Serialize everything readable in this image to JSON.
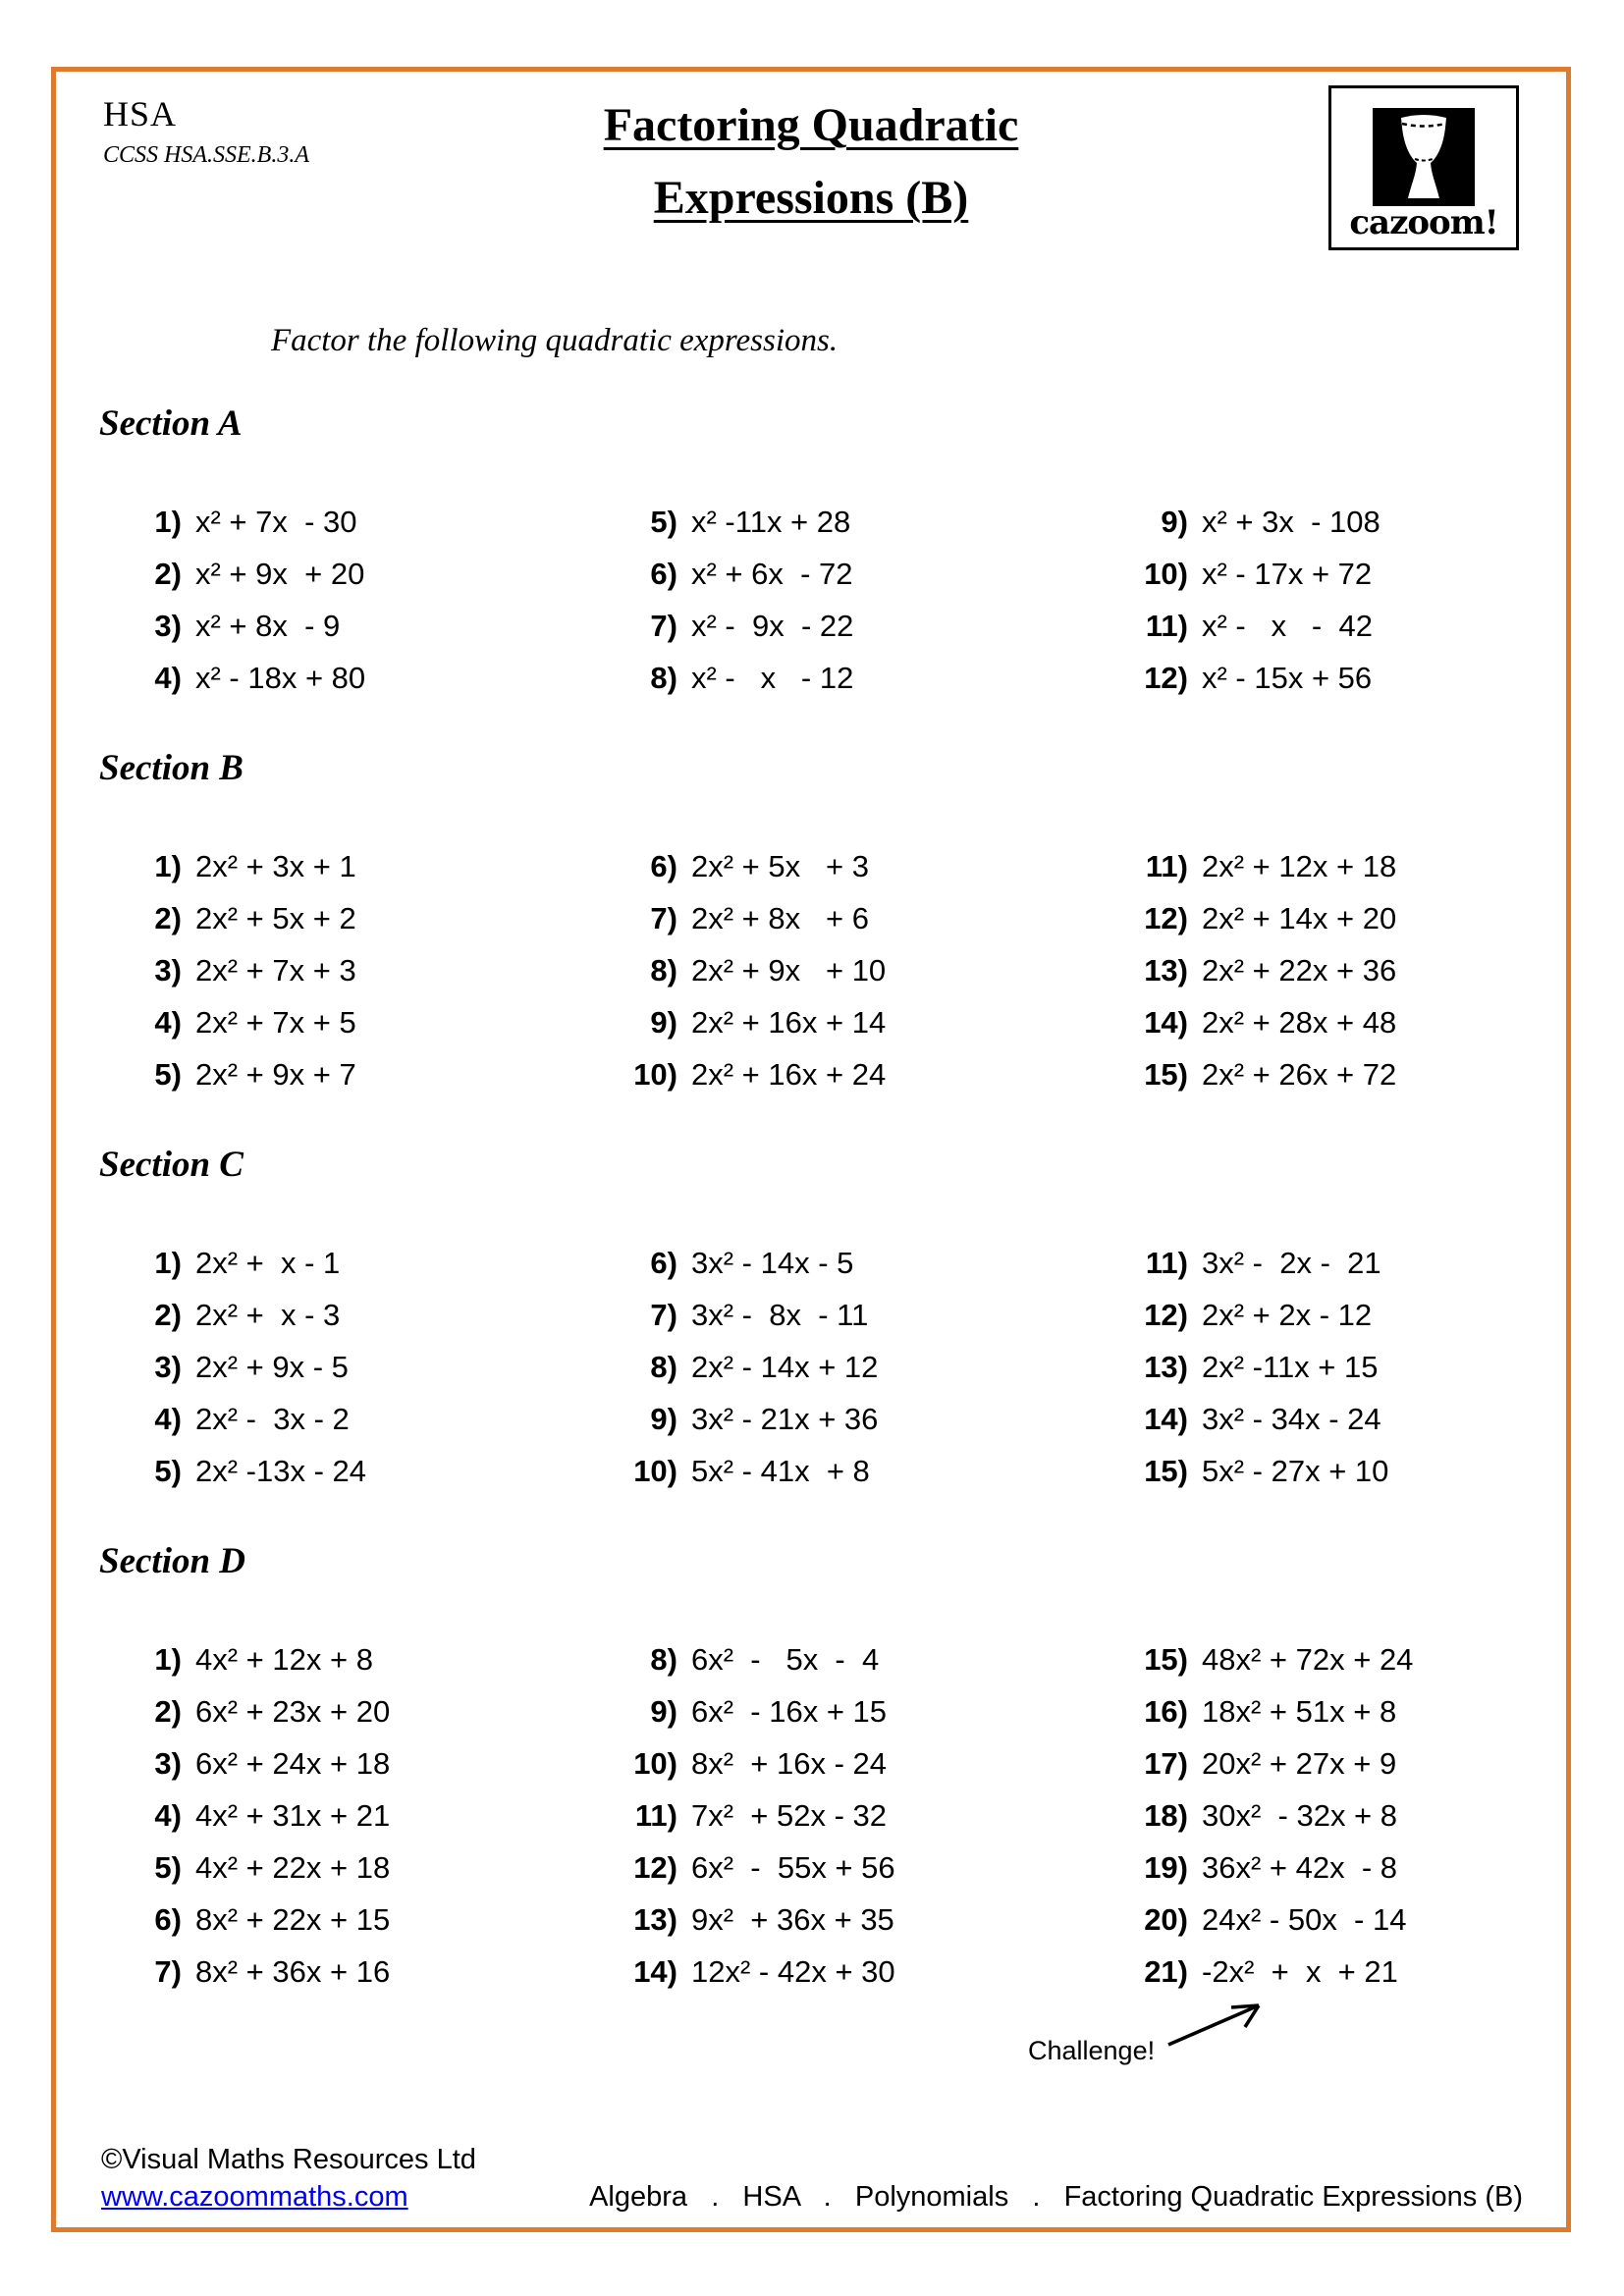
{
  "page": {
    "course": "HSA",
    "standard": "CCSS HSA.SSE.B.3.A",
    "title_line1": "Factoring Quadratic",
    "title_line2": "Expressions (B)",
    "logo_wordmark": "cazoom!",
    "instruction": "Factor the following quadratic expressions.",
    "border_color": "#dd7b2e",
    "link_color": "#0000ee"
  },
  "sections": [
    {
      "label": "Section A",
      "columns": [
        [
          {
            "n": "1)",
            "e": "x² + 7x  - 30"
          },
          {
            "n": "2)",
            "e": "x² + 9x  + 20"
          },
          {
            "n": "3)",
            "e": "x² + 8x  - 9"
          },
          {
            "n": "4)",
            "e": "x² - 18x + 80"
          }
        ],
        [
          {
            "n": "5)",
            "e": "x² -11x + 28"
          },
          {
            "n": "6)",
            "e": "x² + 6x  - 72"
          },
          {
            "n": "7)",
            "e": "x² -  9x  - 22"
          },
          {
            "n": "8)",
            "e": "x² -   x   - 12"
          }
        ],
        [
          {
            "n": "9)",
            "e": "x² + 3x  - 108"
          },
          {
            "n": "10)",
            "e": "x² - 17x + 72"
          },
          {
            "n": "11)",
            "e": "x² -   x   -  42"
          },
          {
            "n": "12)",
            "e": "x² - 15x + 56"
          }
        ]
      ]
    },
    {
      "label": "Section B",
      "columns": [
        [
          {
            "n": "1)",
            "e": "2x² + 3x + 1"
          },
          {
            "n": "2)",
            "e": "2x² + 5x + 2"
          },
          {
            "n": "3)",
            "e": "2x² + 7x + 3"
          },
          {
            "n": "4)",
            "e": "2x² + 7x + 5"
          },
          {
            "n": "5)",
            "e": "2x² + 9x + 7"
          }
        ],
        [
          {
            "n": "6)",
            "e": "2x² + 5x   + 3"
          },
          {
            "n": "7)",
            "e": "2x² + 8x   + 6"
          },
          {
            "n": "8)",
            "e": "2x² + 9x   + 10"
          },
          {
            "n": "9)",
            "e": "2x² + 16x + 14"
          },
          {
            "n": "10)",
            "e": "2x² + 16x + 24"
          }
        ],
        [
          {
            "n": "11)",
            "e": "2x² + 12x + 18"
          },
          {
            "n": "12)",
            "e": "2x² + 14x + 20"
          },
          {
            "n": "13)",
            "e": "2x² + 22x + 36"
          },
          {
            "n": "14)",
            "e": "2x² + 28x + 48"
          },
          {
            "n": "15)",
            "e": "2x² + 26x + 72"
          }
        ]
      ]
    },
    {
      "label": "Section C",
      "columns": [
        [
          {
            "n": "1)",
            "e": "2x² +  x - 1"
          },
          {
            "n": "2)",
            "e": "2x² +  x - 3"
          },
          {
            "n": "3)",
            "e": "2x² + 9x - 5"
          },
          {
            "n": "4)",
            "e": "2x² -  3x - 2"
          },
          {
            "n": "5)",
            "e": "2x² -13x - 24"
          }
        ],
        [
          {
            "n": "6)",
            "e": "3x² - 14x - 5"
          },
          {
            "n": "7)",
            "e": "3x² -  8x  - 11"
          },
          {
            "n": "8)",
            "e": "2x² - 14x + 12"
          },
          {
            "n": "9)",
            "e": "3x² - 21x + 36"
          },
          {
            "n": "10)",
            "e": "5x² - 41x  + 8"
          }
        ],
        [
          {
            "n": "11)",
            "e": "3x² -  2x -  21"
          },
          {
            "n": "12)",
            "e": "2x² + 2x - 12"
          },
          {
            "n": "13)",
            "e": "2x² -11x + 15"
          },
          {
            "n": "14)",
            "e": "3x² - 34x - 24"
          },
          {
            "n": "15)",
            "e": "5x² - 27x + 10"
          }
        ]
      ]
    },
    {
      "label": "Section D",
      "columns": [
        [
          {
            "n": "1)",
            "e": "4x² + 12x + 8"
          },
          {
            "n": "2)",
            "e": "6x² + 23x + 20"
          },
          {
            "n": "3)",
            "e": "6x² + 24x + 18"
          },
          {
            "n": "4)",
            "e": "4x² + 31x + 21"
          },
          {
            "n": "5)",
            "e": "4x² + 22x + 18"
          },
          {
            "n": "6)",
            "e": "8x² + 22x + 15"
          },
          {
            "n": "7)",
            "e": "8x² + 36x + 16"
          }
        ],
        [
          {
            "n": "8)",
            "e": "6x²  -   5x  -  4"
          },
          {
            "n": "9)",
            "e": "6x²  - 16x + 15"
          },
          {
            "n": "10)",
            "e": "8x²  + 16x - 24"
          },
          {
            "n": "11)",
            "e": "7x²  + 52x - 32"
          },
          {
            "n": "12)",
            "e": "6x²  -  55x + 56"
          },
          {
            "n": "13)",
            "e": "9x²  + 36x + 35"
          },
          {
            "n": "14)",
            "e": "12x² - 42x + 30"
          }
        ],
        [
          {
            "n": "15)",
            "e": "48x² + 72x + 24"
          },
          {
            "n": "16)",
            "e": "18x² + 51x + 8"
          },
          {
            "n": "17)",
            "e": "20x² + 27x + 9"
          },
          {
            "n": "18)",
            "e": "30x²  - 32x + 8"
          },
          {
            "n": "19)",
            "e": "36x² + 42x  - 8"
          },
          {
            "n": "20)",
            "e": "24x² - 50x  - 14"
          },
          {
            "n": "21)",
            "e": "-2x²  +  x  + 21"
          }
        ]
      ]
    }
  ],
  "challenge_label": "Challenge!",
  "footer": {
    "copyright": "©Visual Maths Resources Ltd",
    "website": "www.cazoommaths.com",
    "breadcrumb": "Algebra   .   HSA   .   Polynomials   .   Factoring Quadratic Expressions (B)"
  }
}
